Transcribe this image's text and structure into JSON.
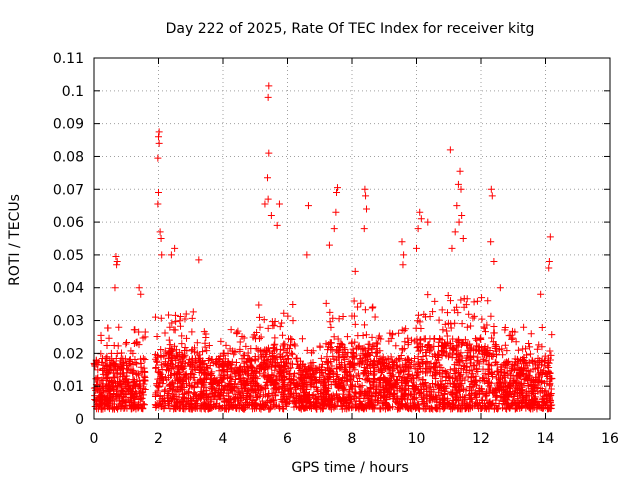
{
  "chart_data": {
    "type": "scatter",
    "title": "Day 222 of 2025, Rate Of TEC Index for receiver kitg",
    "xlabel": "GPS time / hours",
    "ylabel": "ROTI / TECUs",
    "xlim": [
      0,
      16
    ],
    "ylim": [
      0,
      0.11
    ],
    "x_ticks": [
      0,
      2,
      4,
      6,
      8,
      10,
      12,
      14,
      16
    ],
    "x_tick_labels": [
      "0",
      "2",
      "4",
      "6",
      "8",
      "10",
      "12",
      "14",
      "16"
    ],
    "y_ticks": [
      0,
      0.01,
      0.02,
      0.03,
      0.04,
      0.05,
      0.06,
      0.07,
      0.08,
      0.09,
      0.1,
      0.11
    ],
    "y_tick_labels": [
      "0",
      "0.01",
      "0.02",
      "0.03",
      "0.04",
      "0.05",
      "0.06",
      "0.07",
      "0.08",
      "0.09",
      "0.1",
      "0.11"
    ],
    "grid": true,
    "marker": "+",
    "series_color": "#ff0000",
    "data_range_hours": [
      0,
      14.2
    ],
    "outliers": [
      {
        "x": 5.42,
        "y": 0.1015
      },
      {
        "x": 5.4,
        "y": 0.098
      },
      {
        "x": 5.42,
        "y": 0.081
      },
      {
        "x": 5.38,
        "y": 0.0735
      },
      {
        "x": 5.4,
        "y": 0.067
      },
      {
        "x": 5.3,
        "y": 0.0655
      },
      {
        "x": 5.75,
        "y": 0.0655
      },
      {
        "x": 5.68,
        "y": 0.059
      },
      {
        "x": 5.5,
        "y": 0.062
      },
      {
        "x": 2.02,
        "y": 0.0875
      },
      {
        "x": 2.0,
        "y": 0.086
      },
      {
        "x": 2.02,
        "y": 0.084
      },
      {
        "x": 1.98,
        "y": 0.0795
      },
      {
        "x": 2.0,
        "y": 0.069
      },
      {
        "x": 1.98,
        "y": 0.0655
      },
      {
        "x": 2.05,
        "y": 0.057
      },
      {
        "x": 2.08,
        "y": 0.055
      },
      {
        "x": 2.1,
        "y": 0.05
      },
      {
        "x": 0.68,
        "y": 0.0495
      },
      {
        "x": 0.7,
        "y": 0.047
      },
      {
        "x": 0.72,
        "y": 0.048
      },
      {
        "x": 0.65,
        "y": 0.04
      },
      {
        "x": 1.4,
        "y": 0.04
      },
      {
        "x": 1.45,
        "y": 0.038
      },
      {
        "x": 2.5,
        "y": 0.052
      },
      {
        "x": 2.4,
        "y": 0.05
      },
      {
        "x": 3.25,
        "y": 0.0485
      },
      {
        "x": 6.65,
        "y": 0.065
      },
      {
        "x": 6.6,
        "y": 0.05
      },
      {
        "x": 7.3,
        "y": 0.053
      },
      {
        "x": 7.55,
        "y": 0.0705
      },
      {
        "x": 7.52,
        "y": 0.069
      },
      {
        "x": 7.5,
        "y": 0.063
      },
      {
        "x": 7.45,
        "y": 0.058
      },
      {
        "x": 8.4,
        "y": 0.07
      },
      {
        "x": 8.42,
        "y": 0.068
      },
      {
        "x": 8.45,
        "y": 0.064
      },
      {
        "x": 8.38,
        "y": 0.058
      },
      {
        "x": 8.1,
        "y": 0.045
      },
      {
        "x": 9.55,
        "y": 0.054
      },
      {
        "x": 9.6,
        "y": 0.05
      },
      {
        "x": 9.58,
        "y": 0.047
      },
      {
        "x": 10.1,
        "y": 0.063
      },
      {
        "x": 10.15,
        "y": 0.061
      },
      {
        "x": 10.05,
        "y": 0.058
      },
      {
        "x": 10.35,
        "y": 0.06
      },
      {
        "x": 10.0,
        "y": 0.052
      },
      {
        "x": 11.05,
        "y": 0.082
      },
      {
        "x": 11.35,
        "y": 0.0755
      },
      {
        "x": 11.3,
        "y": 0.0715
      },
      {
        "x": 11.38,
        "y": 0.07
      },
      {
        "x": 11.25,
        "y": 0.065
      },
      {
        "x": 11.4,
        "y": 0.062
      },
      {
        "x": 11.32,
        "y": 0.06
      },
      {
        "x": 11.2,
        "y": 0.057
      },
      {
        "x": 11.45,
        "y": 0.055
      },
      {
        "x": 11.1,
        "y": 0.052
      },
      {
        "x": 12.32,
        "y": 0.07
      },
      {
        "x": 12.35,
        "y": 0.068
      },
      {
        "x": 12.3,
        "y": 0.054
      },
      {
        "x": 12.4,
        "y": 0.048
      },
      {
        "x": 12.6,
        "y": 0.04
      },
      {
        "x": 14.15,
        "y": 0.0555
      },
      {
        "x": 14.12,
        "y": 0.048
      },
      {
        "x": 14.1,
        "y": 0.046
      },
      {
        "x": 13.85,
        "y": 0.038
      }
    ],
    "dense_clusters": [
      {
        "x_start": 0.0,
        "x_end": 1.6,
        "y_typical_max": 0.025
      },
      {
        "x_start": 1.9,
        "x_end": 3.4,
        "y_typical_max": 0.03
      },
      {
        "x_start": 3.4,
        "x_end": 5.0,
        "y_typical_max": 0.025
      },
      {
        "x_start": 5.0,
        "x_end": 6.2,
        "y_typical_max": 0.032
      },
      {
        "x_start": 6.2,
        "x_end": 7.2,
        "y_typical_max": 0.022
      },
      {
        "x_start": 7.2,
        "x_end": 8.8,
        "y_typical_max": 0.033
      },
      {
        "x_start": 8.8,
        "x_end": 10.0,
        "y_typical_max": 0.025
      },
      {
        "x_start": 10.0,
        "x_end": 11.0,
        "y_typical_max": 0.035
      },
      {
        "x_start": 11.0,
        "x_end": 12.5,
        "y_typical_max": 0.035
      },
      {
        "x_start": 12.5,
        "x_end": 14.2,
        "y_typical_max": 0.025
      }
    ]
  }
}
